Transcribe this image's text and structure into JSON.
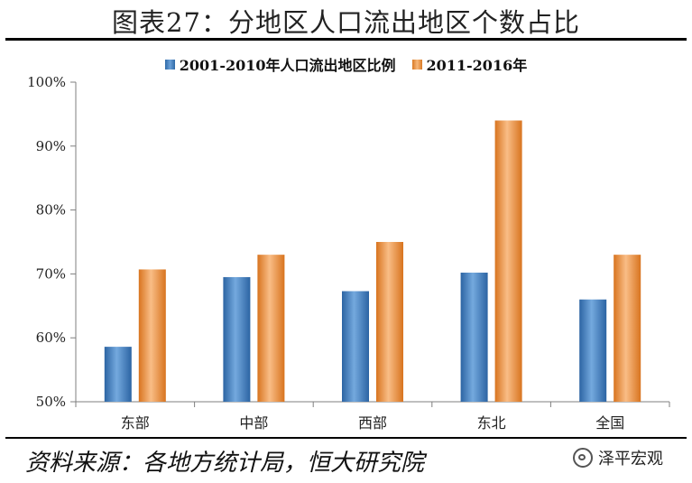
{
  "header": {
    "title": "图表27：分地区人口流出地区个数占比"
  },
  "footer": {
    "source": "资料来源：各地方统计局，恒大研究院",
    "brand": "泽平宏观"
  },
  "colors": {
    "series1": "#4a86c6",
    "series2": "#f0914a"
  },
  "chart_data": {
    "type": "bar",
    "categories": [
      "东部",
      "中部",
      "西部",
      "东北",
      "全国"
    ],
    "series": [
      {
        "name": "2001-2010年人口流出地区比例",
        "values": [
          58.6,
          69.5,
          67.3,
          70.2,
          66.0
        ]
      },
      {
        "name": "2011-2016年",
        "values": [
          70.7,
          73.0,
          75.0,
          94.0,
          73.0
        ]
      }
    ],
    "ylim": [
      50,
      100
    ],
    "yticks": [
      "50%",
      "60%",
      "70%",
      "80%",
      "90%",
      "100%"
    ],
    "ytick_values": [
      50,
      60,
      70,
      80,
      90,
      100
    ],
    "legend": "top",
    "grid": false
  }
}
